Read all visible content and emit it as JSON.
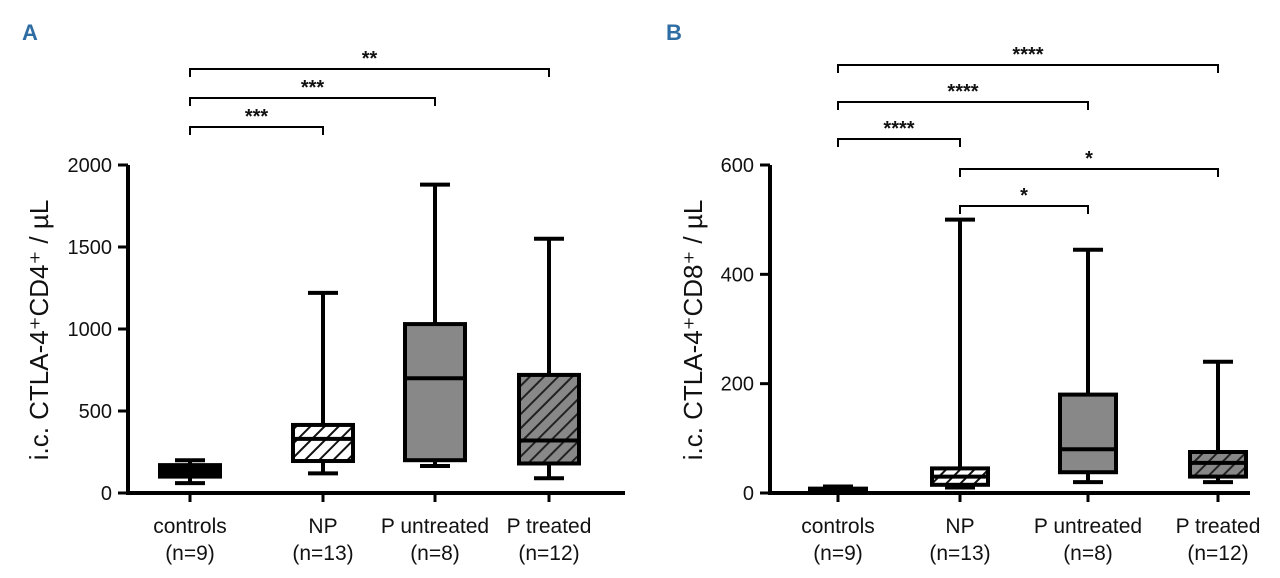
{
  "chart_data": [
    {
      "type": "box",
      "panel": "A",
      "ylabel": "i.c. CTLA-4⁺CD4⁺ / µL",
      "ylim": [
        0,
        2000
      ],
      "yticks": [
        "0",
        "500",
        "1000",
        "1500",
        "2000"
      ],
      "ytick_values": [
        0,
        500,
        1000,
        1500,
        2000
      ],
      "categories": [
        "controls",
        "NP",
        "P untreated",
        "P treated"
      ],
      "sublabels": [
        "(n=9)",
        "(n=13)",
        "(n=8)",
        "(n=12)"
      ],
      "fills": [
        "#000000",
        "hatch-light",
        "#888888",
        "hatch-dark"
      ],
      "boxes": [
        {
          "min": 60,
          "q1": 100,
          "median": 140,
          "q3": 170,
          "max": 200
        },
        {
          "min": 120,
          "q1": 195,
          "median": 330,
          "q3": 415,
          "max": 1220
        },
        {
          "min": 165,
          "q1": 200,
          "median": 700,
          "q3": 1030,
          "max": 1880
        },
        {
          "min": 90,
          "q1": 180,
          "median": 320,
          "q3": 720,
          "max": 1550
        }
      ],
      "significance": [
        {
          "from": 0,
          "to": 1,
          "label": "***",
          "level": 0
        },
        {
          "from": 0,
          "to": 2,
          "label": "***",
          "level": 1
        },
        {
          "from": 0,
          "to": 3,
          "label": "**",
          "level": 2
        }
      ]
    },
    {
      "type": "box",
      "panel": "B",
      "ylabel": "i.c. CTLA-4⁺CD8⁺ / µL",
      "ylim": [
        0,
        600
      ],
      "yticks": [
        "0",
        "200",
        "400",
        "600"
      ],
      "ytick_values": [
        0,
        200,
        400,
        600
      ],
      "categories": [
        "controls",
        "NP",
        "P untreated",
        "P treated"
      ],
      "sublabels": [
        "(n=9)",
        "(n=13)",
        "(n=8)",
        "(n=12)"
      ],
      "fills": [
        "#000000",
        "hatch-light",
        "#888888",
        "hatch-dark"
      ],
      "boxes": [
        {
          "min": 0,
          "q1": 2,
          "median": 5,
          "q3": 8,
          "max": 12
        },
        {
          "min": 10,
          "q1": 15,
          "median": 30,
          "q3": 45,
          "max": 500
        },
        {
          "min": 20,
          "q1": 38,
          "median": 80,
          "q3": 180,
          "max": 445
        },
        {
          "min": 20,
          "q1": 30,
          "median": 55,
          "q3": 75,
          "max": 240
        }
      ],
      "significance": [
        {
          "from": 0,
          "to": 1,
          "label": "****",
          "level": 0
        },
        {
          "from": 0,
          "to": 2,
          "label": "****",
          "level": 1
        },
        {
          "from": 0,
          "to": 3,
          "label": "****",
          "level": 2
        },
        {
          "from": 1,
          "to": 2,
          "label": "*",
          "level": -2
        },
        {
          "from": 1,
          "to": 3,
          "label": "*",
          "level": -1
        }
      ]
    }
  ]
}
